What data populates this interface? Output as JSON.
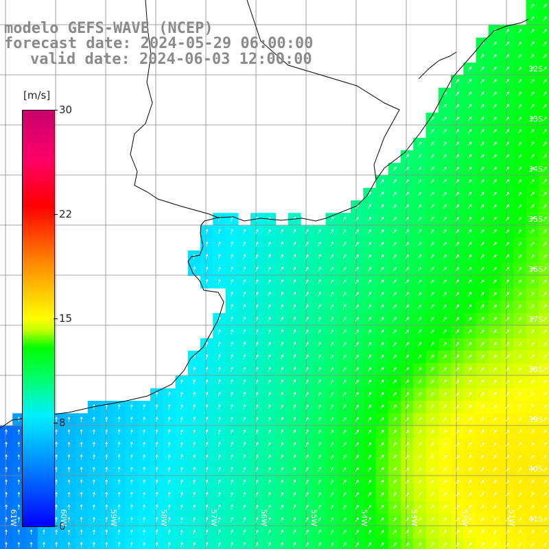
{
  "title": {
    "line1": "modelo GEFS-WAVE (NCEP)",
    "line2": "forecast date: 2024-05-29 06:00:00",
    "line3": "valid date: 2024-06-03 12:00:00"
  },
  "colorbar": {
    "unit": "[m/s]",
    "ticks": [
      "30",
      "22",
      "15",
      "8",
      "0"
    ],
    "tick_values": [
      30,
      22,
      15,
      8,
      0
    ],
    "colors": [
      "#0000ff",
      "#00f0ff",
      "#00ff00",
      "#ffff00",
      "#ff0000",
      "#c8006e"
    ]
  },
  "lat_labels": [
    "32S",
    "33S",
    "34S",
    "35S",
    "36S",
    "37S",
    "38S",
    "39S",
    "40S",
    "41S"
  ],
  "lon_labels": [
    "61W",
    "60W",
    "59W",
    "58W",
    "57W",
    "56W",
    "55W",
    "54W",
    "53W",
    "52W",
    "51W"
  ],
  "map": {
    "land_color": "#ffffff",
    "coast_color": "#000000",
    "grid_color": "#888888"
  }
}
